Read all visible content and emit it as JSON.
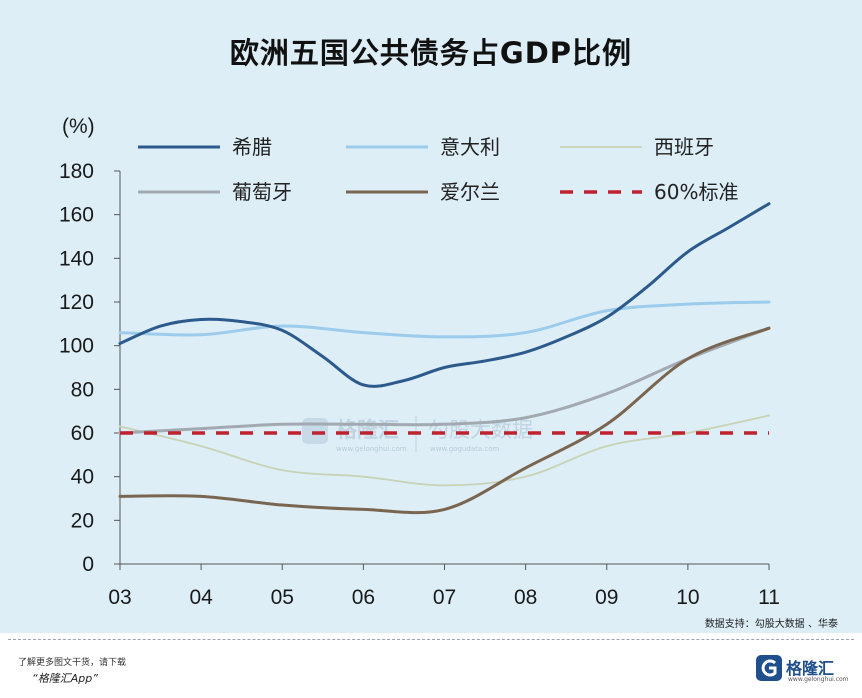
{
  "chart_data": {
    "type": "line",
    "title": "欧洲五国公共债务占GDP比例",
    "ylabel": "(%)",
    "xlabel": "",
    "ylim": [
      0,
      180
    ],
    "yticks": [
      0,
      20,
      40,
      60,
      80,
      100,
      120,
      140,
      160,
      180
    ],
    "xticks": [
      "03",
      "04",
      "05",
      "06",
      "07",
      "08",
      "09",
      "10",
      "11"
    ],
    "grid": false,
    "legend_position": "top",
    "series": [
      {
        "name": "希腊",
        "color": "#2c5a8c",
        "dashed": false,
        "points": [
          [
            0,
            101
          ],
          [
            0.5,
            109
          ],
          [
            1,
            112
          ],
          [
            1.5,
            111
          ],
          [
            2,
            107
          ],
          [
            2.5,
            95
          ],
          [
            3,
            82
          ],
          [
            3.5,
            84
          ],
          [
            4,
            90
          ],
          [
            4.5,
            93
          ],
          [
            5,
            97
          ],
          [
            5.5,
            104
          ],
          [
            6,
            113
          ],
          [
            6.5,
            127
          ],
          [
            7,
            143
          ],
          [
            7.5,
            154
          ],
          [
            8,
            165
          ]
        ]
      },
      {
        "name": "意大利",
        "color": "#9ccbec",
        "dashed": false,
        "points": [
          [
            0,
            106
          ],
          [
            1,
            105
          ],
          [
            2,
            109
          ],
          [
            3,
            106
          ],
          [
            4,
            104
          ],
          [
            5,
            106
          ],
          [
            6,
            116
          ],
          [
            7,
            119
          ],
          [
            8,
            120
          ]
        ]
      },
      {
        "name": "西班牙",
        "color": "#c8d2b4",
        "dashed": false,
        "points": [
          [
            0,
            63
          ],
          [
            1,
            54
          ],
          [
            2,
            43
          ],
          [
            3,
            40
          ],
          [
            4,
            36
          ],
          [
            5,
            40
          ],
          [
            6,
            54
          ],
          [
            7,
            60
          ],
          [
            8,
            68
          ]
        ]
      },
      {
        "name": "葡萄牙",
        "color": "#a3a9b1",
        "dashed": false,
        "points": [
          [
            0,
            60
          ],
          [
            1,
            62
          ],
          [
            2,
            64
          ],
          [
            3,
            64
          ],
          [
            4,
            64
          ],
          [
            5,
            67
          ],
          [
            6,
            78
          ],
          [
            7,
            94
          ],
          [
            8,
            108
          ]
        ]
      },
      {
        "name": "爱尔兰",
        "color": "#7a6650",
        "dashed": false,
        "points": [
          [
            0,
            31
          ],
          [
            1,
            31
          ],
          [
            2,
            27
          ],
          [
            3,
            25
          ],
          [
            4,
            25
          ],
          [
            5,
            44
          ],
          [
            6,
            64
          ],
          [
            7,
            94
          ],
          [
            8,
            108
          ]
        ]
      },
      {
        "name": "60%标准",
        "color": "#c0212f",
        "dashed": true,
        "points": [
          [
            0,
            60
          ],
          [
            8,
            60
          ]
        ]
      }
    ]
  },
  "watermark": {
    "brand": "格隆汇",
    "brand_url": "www.gelonghui.com",
    "partner": "勾股大数据",
    "partner_url": "www.gogudata.com"
  },
  "source_note": "数据支持：勾股大数据 、华泰",
  "footer": {
    "line1": "了解更多图文干货，请下载",
    "line2": "“格隆汇App”"
  },
  "logo": {
    "name": "格隆汇",
    "url": "www.gelonghui.com"
  }
}
